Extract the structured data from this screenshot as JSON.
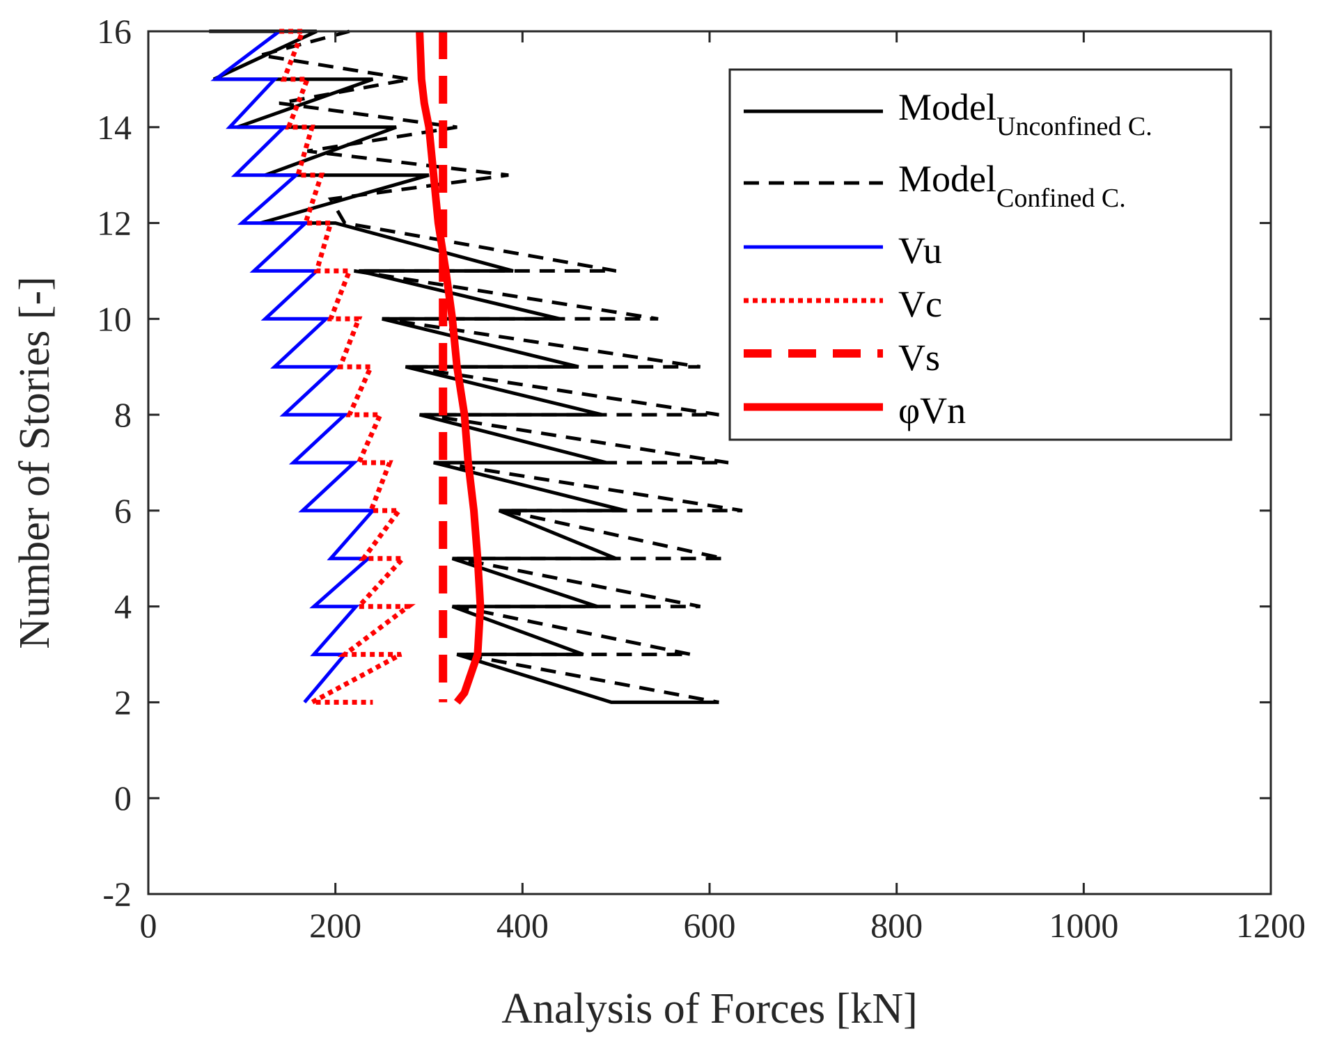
{
  "chart_data": {
    "type": "line",
    "title": "",
    "xlabel": "Analysis of Forces [kN]",
    "ylabel": "Number of Stories [-]",
    "xlim": [
      0,
      1200
    ],
    "ylim": [
      -2,
      16
    ],
    "xticks": [
      0,
      200,
      400,
      600,
      800,
      1000,
      1200
    ],
    "yticks": [
      -2,
      0,
      2,
      4,
      6,
      8,
      10,
      12,
      14,
      16
    ],
    "grid": false,
    "legend_position": "top-right",
    "series": [
      {
        "name": "Model_Unconfined C.",
        "legend_main": "Model",
        "legend_sub": "Unconfined C.",
        "color": "#000000",
        "style": "solid",
        "points": [
          [
            65,
            16
          ],
          [
            180,
            16
          ],
          [
            70,
            15
          ],
          [
            240,
            15
          ],
          [
            95,
            14
          ],
          [
            265,
            14
          ],
          [
            125,
            13
          ],
          [
            300,
            13
          ],
          [
            120,
            12
          ],
          [
            200,
            12
          ],
          [
            390,
            11
          ],
          [
            225,
            11
          ],
          [
            440,
            10
          ],
          [
            250,
            10
          ],
          [
            460,
            9
          ],
          [
            275,
            9
          ],
          [
            485,
            8
          ],
          [
            290,
            8
          ],
          [
            490,
            7
          ],
          [
            305,
            7
          ],
          [
            510,
            6
          ],
          [
            375,
            6
          ],
          [
            500,
            5
          ],
          [
            325,
            5
          ],
          [
            480,
            4
          ],
          [
            325,
            4
          ],
          [
            465,
            3
          ],
          [
            330,
            3
          ],
          [
            495,
            2
          ],
          [
            610,
            2
          ]
        ]
      },
      {
        "name": "Model_Confined C.",
        "legend_main": "Model",
        "legend_sub": "Confined C.",
        "color": "#000000",
        "style": "dashed",
        "points": [
          [
            215,
            16
          ],
          [
            120,
            15.5
          ],
          [
            280,
            15
          ],
          [
            140,
            14.5
          ],
          [
            330,
            14
          ],
          [
            170,
            13.5
          ],
          [
            385,
            13
          ],
          [
            195,
            12.5
          ],
          [
            210,
            12
          ],
          [
            500,
            11
          ],
          [
            220,
            11
          ],
          [
            545,
            10
          ],
          [
            250,
            10
          ],
          [
            590,
            9
          ],
          [
            275,
            9
          ],
          [
            610,
            8
          ],
          [
            295,
            8
          ],
          [
            620,
            7
          ],
          [
            310,
            7
          ],
          [
            635,
            6
          ],
          [
            380,
            6
          ],
          [
            615,
            5
          ],
          [
            330,
            5
          ],
          [
            590,
            4
          ],
          [
            330,
            4
          ],
          [
            580,
            3
          ],
          [
            335,
            3
          ],
          [
            610,
            2
          ]
        ]
      },
      {
        "name": "Vu",
        "color": "#0000ff",
        "style": "solid",
        "points": [
          [
            140,
            16
          ],
          [
            72,
            15
          ],
          [
            135,
            15
          ],
          [
            87,
            14
          ],
          [
            145,
            14
          ],
          [
            93,
            13
          ],
          [
            158,
            13
          ],
          [
            100,
            12
          ],
          [
            168,
            12
          ],
          [
            113,
            11
          ],
          [
            180,
            11
          ],
          [
            125,
            10
          ],
          [
            190,
            10
          ],
          [
            135,
            9
          ],
          [
            200,
            9
          ],
          [
            145,
            8
          ],
          [
            210,
            8
          ],
          [
            155,
            7
          ],
          [
            220,
            7
          ],
          [
            165,
            6
          ],
          [
            240,
            6
          ],
          [
            195,
            5
          ],
          [
            235,
            5
          ],
          [
            177,
            4
          ],
          [
            222,
            4
          ],
          [
            177,
            3
          ],
          [
            210,
            3
          ],
          [
            167,
            2
          ]
        ]
      },
      {
        "name": "Vc",
        "color": "#ff0000",
        "style": "dotted",
        "points": [
          [
            140,
            16
          ],
          [
            165,
            16
          ],
          [
            145,
            15
          ],
          [
            170,
            15
          ],
          [
            150,
            14
          ],
          [
            175,
            14
          ],
          [
            160,
            13
          ],
          [
            185,
            13
          ],
          [
            168,
            12
          ],
          [
            195,
            12
          ],
          [
            180,
            11
          ],
          [
            215,
            11
          ],
          [
            195,
            10
          ],
          [
            225,
            10
          ],
          [
            205,
            9
          ],
          [
            238,
            9
          ],
          [
            215,
            8
          ],
          [
            248,
            8
          ],
          [
            225,
            7
          ],
          [
            258,
            7
          ],
          [
            238,
            6
          ],
          [
            268,
            6
          ],
          [
            230,
            5
          ],
          [
            272,
            5
          ],
          [
            225,
            4
          ],
          [
            278,
            4
          ],
          [
            210,
            3
          ],
          [
            270,
            3
          ],
          [
            175,
            2
          ],
          [
            240,
            2
          ]
        ]
      },
      {
        "name": "Vs",
        "color": "#ff0000",
        "style": "dashed-thick",
        "points": [
          [
            315,
            16
          ],
          [
            315,
            2
          ]
        ]
      },
      {
        "name": "φVn",
        "legend_main": "φVn",
        "color": "#ff0000",
        "style": "solid-thick",
        "points": [
          [
            290,
            16
          ],
          [
            292,
            15
          ],
          [
            295,
            14.5
          ],
          [
            300,
            14
          ],
          [
            305,
            13
          ],
          [
            310,
            12
          ],
          [
            318,
            11
          ],
          [
            325,
            10
          ],
          [
            330,
            9
          ],
          [
            338,
            8
          ],
          [
            342,
            7
          ],
          [
            348,
            6
          ],
          [
            352,
            5
          ],
          [
            355,
            4
          ],
          [
            352,
            3
          ],
          [
            338,
            2.2
          ],
          [
            330,
            2
          ]
        ]
      }
    ]
  }
}
